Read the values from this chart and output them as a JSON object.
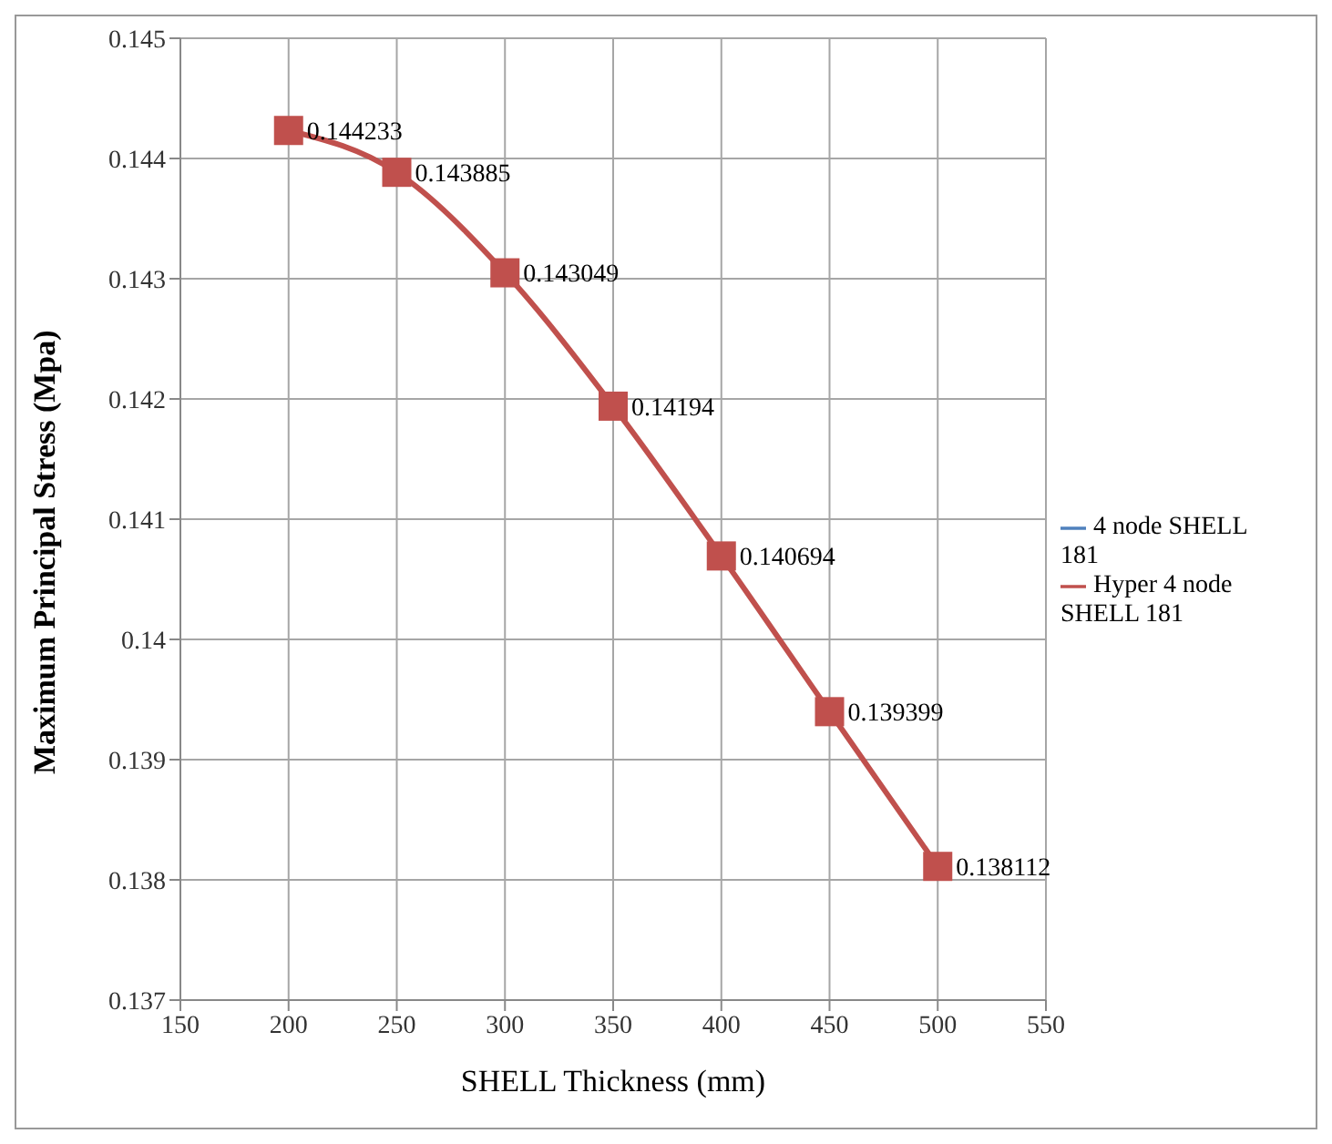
{
  "chart_data": {
    "type": "line",
    "xlabel": "SHELL Thickness (mm)",
    "ylabel": "Maximum Principal Stress (Mpa)",
    "x": [
      200,
      250,
      300,
      350,
      400,
      450,
      500
    ],
    "series": [
      {
        "name": "4 node SHELL 181",
        "color": "#4f81bd",
        "marker": "diamond",
        "values": [
          null,
          null,
          null,
          null,
          null,
          null,
          null
        ]
      },
      {
        "name": "Hyper 4 node SHELL 181",
        "color": "#c0504d",
        "marker": "square",
        "data_labels": true,
        "values": [
          0.144233,
          0.143885,
          0.143049,
          0.14194,
          0.140694,
          0.139399,
          0.138112
        ]
      }
    ],
    "xlim": [
      150,
      550
    ],
    "xticks": [
      150,
      200,
      250,
      300,
      350,
      400,
      450,
      500,
      550
    ],
    "ylim": [
      0.137,
      0.145
    ],
    "yticks": [
      0.137,
      0.138,
      0.139,
      0.14,
      0.141,
      0.142,
      0.143,
      0.144,
      0.145
    ],
    "grid": true,
    "legend": "right",
    "line_style": "solid"
  }
}
